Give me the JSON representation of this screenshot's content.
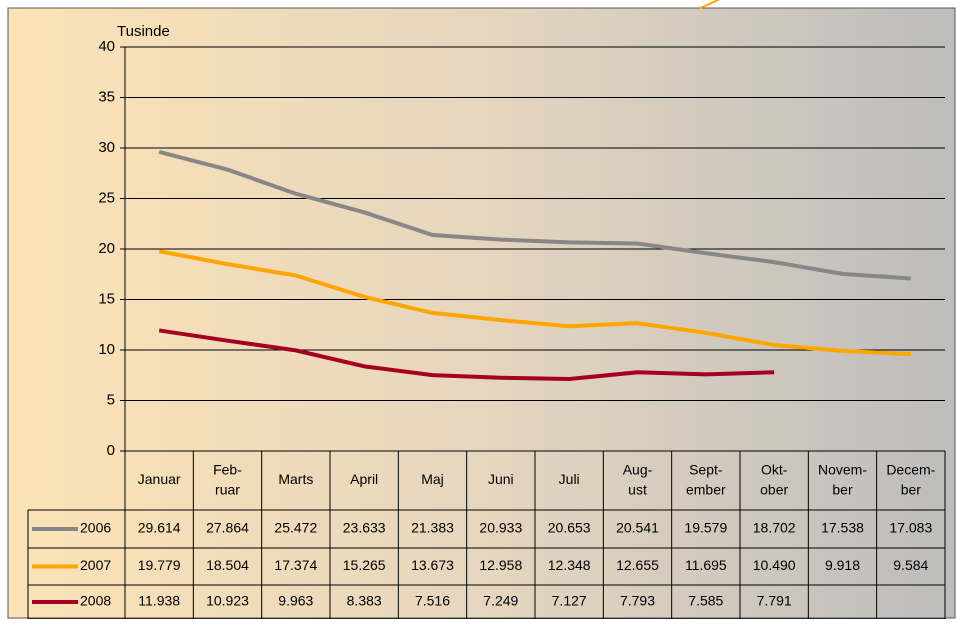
{
  "chart_data": {
    "type": "line",
    "y_axis_label": "Tusinde",
    "categories": [
      "Januar",
      "Feb-\nruar",
      "Marts",
      "April",
      "Maj",
      "Juni",
      "Juli",
      "Aug-\nust",
      "Sept-\nember",
      "Okt-\nober",
      "Novem-\nber",
      "Decem-\nber"
    ],
    "series": [
      {
        "name": "2006",
        "color": "#878787",
        "values": [
          29.614,
          27.864,
          25.472,
          23.633,
          21.383,
          20.933,
          20.653,
          20.541,
          19.579,
          18.702,
          17.538,
          17.083
        ],
        "value_labels": [
          "29.614",
          "27.864",
          "25.472",
          "23.633",
          "21.383",
          "20.933",
          "20.653",
          "20.541",
          "19.579",
          "18.702",
          "17.538",
          "17.083"
        ]
      },
      {
        "name": "2007",
        "color": "#ffa500",
        "values": [
          19.779,
          18.504,
          17.374,
          15.265,
          13.673,
          12.958,
          12.348,
          12.655,
          11.695,
          10.49,
          9.918,
          9.584
        ],
        "value_labels": [
          "19.779",
          "18.504",
          "17.374",
          "15.265",
          "13.673",
          "12.958",
          "12.348",
          "12.655",
          "11.695",
          "10.490",
          "9.918",
          "9.584"
        ]
      },
      {
        "name": "2008",
        "color": "#a50021",
        "values": [
          11.938,
          10.923,
          9.963,
          8.383,
          7.516,
          7.249,
          7.127,
          7.793,
          7.585,
          7.791,
          null,
          null
        ],
        "value_labels": [
          "11.938",
          "10.923",
          "9.963",
          "8.383",
          "7.516",
          "7.249",
          "7.127",
          "7.793",
          "7.585",
          "7.791",
          null,
          null
        ]
      }
    ],
    "ylim": [
      0,
      40
    ],
    "yticks": [
      0,
      5,
      10,
      15,
      20,
      25,
      30,
      35,
      40
    ],
    "grid": true,
    "data_table": true
  }
}
